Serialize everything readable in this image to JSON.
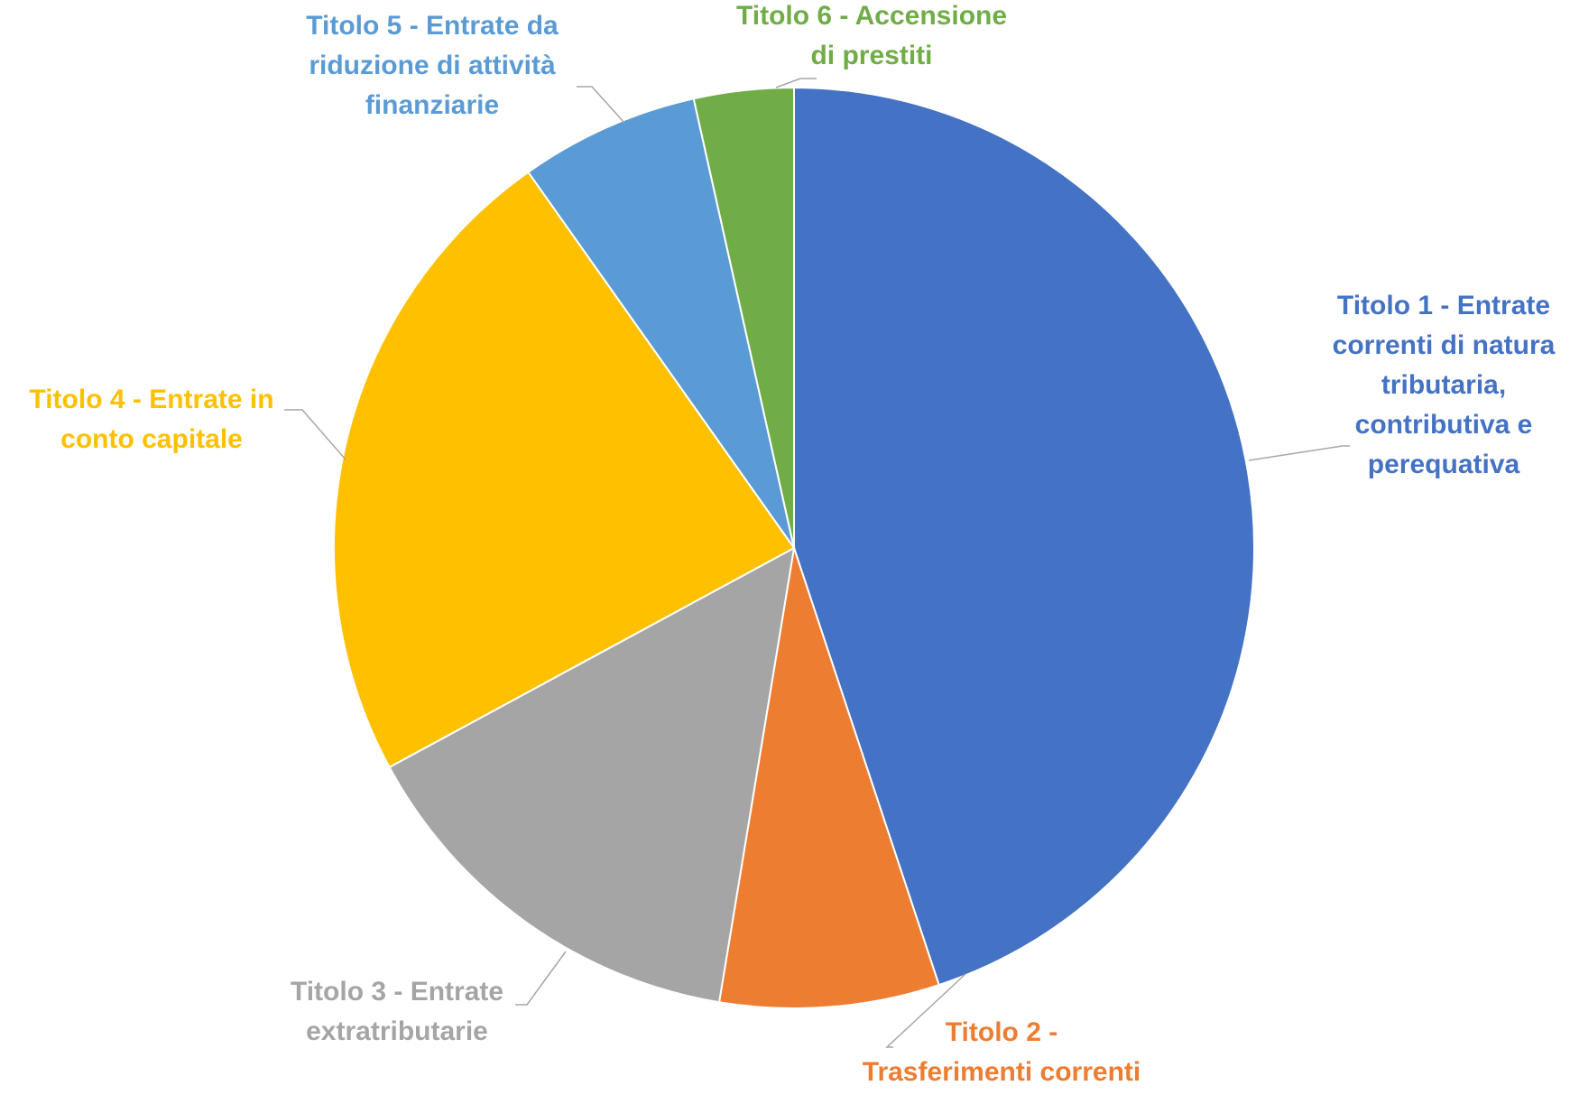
{
  "chart_data": {
    "type": "pie",
    "title": "",
    "start_angle_deg": 0,
    "direction": "clockwise",
    "slices": [
      {
        "name": "Titolo 1 - Entrate correnti di natura tributaria, contributiva e perequativa",
        "label_lines": [
          "Titolo 1 - Entrate",
          "correnti di natura",
          "tributaria,",
          "contributiva e",
          "perequativa"
        ],
        "value": 44.9,
        "color": "#4472C4"
      },
      {
        "name": "Titolo 2 - Trasferimenti correnti",
        "label_lines": [
          "Titolo 2 -",
          "Trasferimenti correnti"
        ],
        "value": 7.7,
        "color": "#ED7D31"
      },
      {
        "name": "Titolo 3 - Entrate extratributarie",
        "label_lines": [
          "Titolo 3 - Entrate",
          "extratributarie"
        ],
        "value": 14.5,
        "color": "#A5A5A5"
      },
      {
        "name": "Titolo 4 - Entrate in conto capitale",
        "label_lines": [
          "Titolo 4 - Entrate in",
          "conto capitale"
        ],
        "value": 23.1,
        "color": "#FFC000"
      },
      {
        "name": "Titolo 5 - Entrate da riduzione di attività finanziarie",
        "label_lines": [
          "Titolo 5 - Entrate da",
          "riduzione di attività",
          "finanziarie"
        ],
        "value": 6.3,
        "color": "#5B9BD5"
      },
      {
        "name": "Titolo 6 - Accensione di prestiti",
        "label_lines": [
          "Titolo 6 - Accensione",
          "di prestiti"
        ],
        "value": 3.5,
        "color": "#70AD47"
      }
    ]
  }
}
